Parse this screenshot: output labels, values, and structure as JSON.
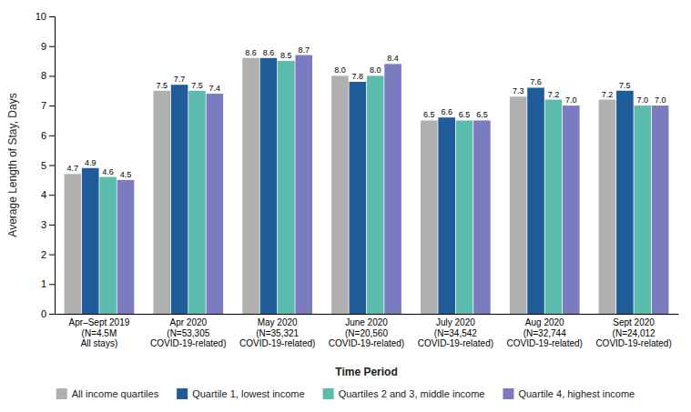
{
  "chart_data": {
    "type": "bar",
    "xlabel": "Time Period",
    "ylabel": "Average Length of Stay, Days",
    "categories": [
      "Apr–Sept 2019\n(N=4.5M\nAll stays)",
      "Apr 2020\n(N=53,305\nCOVID-19-related)",
      "May 2020\n(N=35,321\nCOVID-19-related)",
      "June 2020\n(N=20,560\nCOVID-19-related)",
      "July 2020\n(N=34,542\nCOVID-19-related)",
      "Aug 2020\n(N=32,744\nCOVID-19-related)",
      "Sept 2020\n(N=24,012\nCOVID-19-related)"
    ],
    "series": [
      {
        "name": "All income quartiles",
        "color": "#b0b0b0",
        "values": [
          4.7,
          7.5,
          8.6,
          8.0,
          6.5,
          7.3,
          7.2
        ],
        "value_labels": [
          "4.7",
          "7.5",
          "8.6",
          "8.0",
          "6.5",
          "7.3",
          "7.2"
        ]
      },
      {
        "name": "Quartile 1, lowest income",
        "color": "#1f5c99",
        "values": [
          4.9,
          7.7,
          8.6,
          7.8,
          6.6,
          7.6,
          7.5
        ],
        "value_labels": [
          "4.9",
          "7.7",
          "8.6",
          "7.8",
          "6.6",
          "7.6",
          "7.5"
        ]
      },
      {
        "name": "Quartiles 2 and 3, middle income",
        "color": "#5bbcad",
        "values": [
          4.6,
          7.5,
          8.5,
          8.0,
          6.5,
          7.2,
          7.0
        ],
        "value_labels": [
          "4.6",
          "7.5",
          "8.5",
          "8.0",
          "6.5",
          "7.2",
          "7.0"
        ]
      },
      {
        "name": "Quartile 4, highest income",
        "color": "#7b7bbf",
        "values": [
          4.5,
          7.4,
          8.7,
          8.4,
          6.5,
          7.0,
          7.0
        ],
        "value_labels": [
          "4.5",
          "7.4",
          "8.7",
          "8.4",
          "6.5",
          "7.0",
          "7.0"
        ]
      }
    ],
    "ylim": [
      0,
      10
    ],
    "yticks": [
      0,
      1,
      2,
      3,
      4,
      5,
      6,
      7,
      8,
      9,
      10
    ],
    "grid": false,
    "legend": "bottom",
    "data_labels": true
  }
}
